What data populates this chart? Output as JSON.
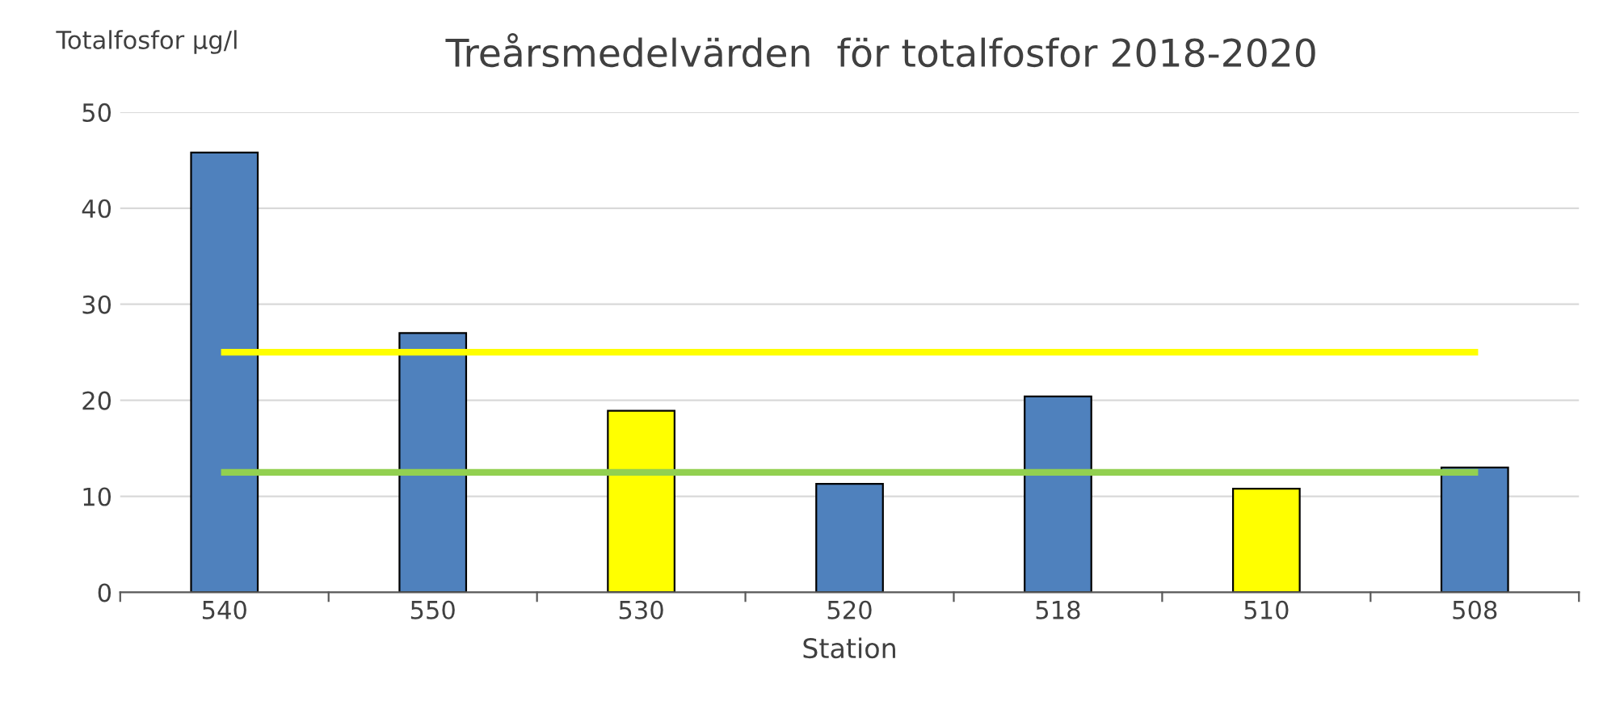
{
  "chart_data": {
    "type": "bar",
    "title": "Treårsmedelvärden  för totalfosfor 2018-2020",
    "ylabel": "Totalfosfor µg/l",
    "xlabel": "Station",
    "categories": [
      "540",
      "550",
      "530",
      "520",
      "518",
      "510",
      "508"
    ],
    "series": [
      {
        "colors": [
          "#4f81bd",
          "#4f81bd",
          "#ffff00",
          "#4f81bd",
          "#4f81bd",
          "#ffff00",
          "#4f81bd"
        ],
        "values": [
          45.8,
          27.0,
          18.9,
          11.3,
          20.4,
          10.8,
          13.0
        ]
      },
      {
        "type": "line",
        "color": "#ffff00",
        "values": [
          25,
          25,
          25,
          25,
          25,
          25,
          25
        ]
      },
      {
        "type": "line",
        "color": "#92d050",
        "values": [
          12.5,
          12.5,
          12.5,
          12.5,
          12.5,
          12.5,
          12.5
        ]
      }
    ],
    "ylim": [
      0,
      50
    ],
    "yticks": [
      0,
      10,
      20,
      30,
      40,
      50
    ],
    "grid": "y",
    "legend": false
  }
}
